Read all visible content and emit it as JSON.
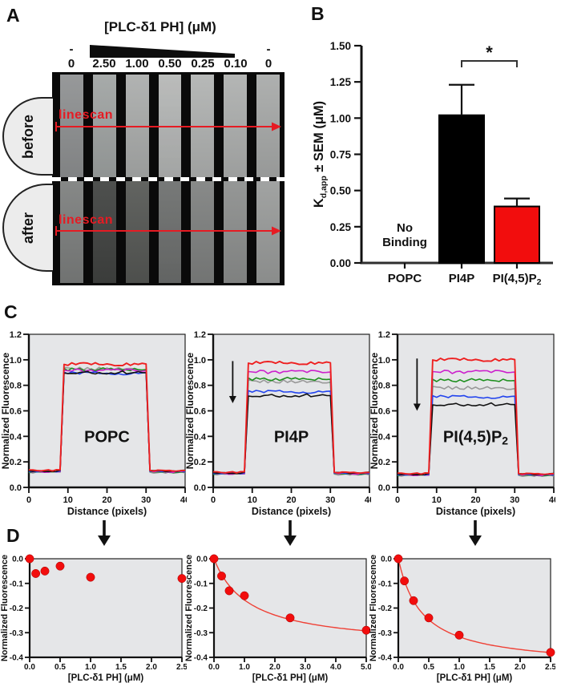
{
  "figure": {
    "panels": {
      "a": "A",
      "b": "B",
      "c": "C",
      "d": "D"
    },
    "panel_a": {
      "title": "[PLC-δ1 PH] (μM)",
      "minus": "-",
      "concentrations": [
        "0",
        "2.50",
        "1.00",
        "0.50",
        "0.25",
        "0.10",
        "0"
      ],
      "rows": [
        {
          "label": "before",
          "linescan": "linescan",
          "lanes": [
            "#8f9192",
            "#a0a4a3",
            "#abadac",
            "#b5b7b6",
            "#b1b3b2",
            "#aeb0af",
            "#a8aaa9"
          ]
        },
        {
          "label": "after",
          "linescan": "linescan",
          "lanes": [
            "#7d7f7e",
            "#414341",
            "#565855",
            "#6d6f6e",
            "#7f8180",
            "#8d8f8e",
            "#9a9c9b"
          ]
        }
      ],
      "accent_red": "#e61b23"
    }
  },
  "chart_data": [
    {
      "id": "kd-bar",
      "type": "bar",
      "ylabel_parts": {
        "pre": "K",
        "sub": "d,app",
        "post": " ± SEM (μM)"
      },
      "categories": [
        "POPC",
        "PI4P",
        "PI(4,5)P₂"
      ],
      "values": [
        null,
        1.02,
        0.39
      ],
      "errors": [
        null,
        0.21,
        0.055
      ],
      "bar_colors": [
        "none",
        "#000000",
        "#f20d0d"
      ],
      "ylim": [
        0,
        1.5
      ],
      "yticks": [
        "0.00",
        "0.25",
        "0.50",
        "0.75",
        "1.00",
        "1.25",
        "1.50"
      ],
      "annotations": {
        "no_binding": "No Binding",
        "sig_star": "*",
        "sig_pair": [
          1,
          2
        ]
      }
    },
    {
      "id": "linescan-popc",
      "type": "line",
      "label": "POPC",
      "xlabel": "Distance (pixels)",
      "ylabel": "Normalized Fluorescence",
      "xlim": [
        0,
        40
      ],
      "ylim": [
        0,
        1.2
      ],
      "xticks": [
        0,
        10,
        20,
        30,
        40
      ],
      "baseline": 0.125,
      "pulse": [
        8,
        31
      ],
      "series": [
        {
          "color": "#999999",
          "plateau": 0.93
        },
        {
          "color": "#1e8f1e",
          "plateau": 0.925
        },
        {
          "color": "#cc22cc",
          "plateau": 0.915
        },
        {
          "color": "#2244ee",
          "plateau": 0.895
        },
        {
          "color": "#111111",
          "plateau": 0.9
        },
        {
          "color": "#ee2020",
          "plateau": 0.965
        }
      ],
      "arrow": null
    },
    {
      "id": "linescan-pi4p",
      "type": "line",
      "label": "PI4P",
      "xlabel": "Distance (pixels)",
      "ylabel": "Normalized Fluorescence",
      "xlim": [
        0,
        40
      ],
      "ylim": [
        0,
        1.2
      ],
      "xticks": [
        0,
        10,
        20,
        30,
        40
      ],
      "baseline": 0.11,
      "pulse": [
        8,
        31
      ],
      "series": [
        {
          "color": "#999999",
          "plateau": 0.83
        },
        {
          "color": "#1e8f1e",
          "plateau": 0.85
        },
        {
          "color": "#cc22cc",
          "plateau": 0.905
        },
        {
          "color": "#2244ee",
          "plateau": 0.75
        },
        {
          "color": "#111111",
          "plateau": 0.72
        },
        {
          "color": "#ee2020",
          "plateau": 0.975
        }
      ],
      "arrow": {
        "x": 5,
        "y1": 0.99,
        "y2": 0.66
      }
    },
    {
      "id": "linescan-pip2",
      "type": "line",
      "label": "PI(4,5)P₂",
      "xlabel": "Distance (pixels)",
      "ylabel": "Normalized Fluorescence",
      "xlim": [
        0,
        40
      ],
      "ylim": [
        0,
        1.2
      ],
      "xticks": [
        0,
        10,
        20,
        30,
        40
      ],
      "baseline": 0.1,
      "pulse": [
        8,
        31
      ],
      "series": [
        {
          "color": "#999999",
          "plateau": 0.78
        },
        {
          "color": "#1e8f1e",
          "plateau": 0.84
        },
        {
          "color": "#cc22cc",
          "plateau": 0.905
        },
        {
          "color": "#2244ee",
          "plateau": 0.71
        },
        {
          "color": "#111111",
          "plateau": 0.65
        },
        {
          "color": "#ee2020",
          "plateau": 1.0
        }
      ],
      "arrow": {
        "x": 5,
        "y1": 1.01,
        "y2": 0.6
      }
    },
    {
      "id": "titration-popc",
      "type": "scatter",
      "xlabel": "[PLC-δ1 PH] (μM)",
      "ylabel": "Normalized Fluorescence",
      "xlim": [
        0,
        2.5
      ],
      "ylim": [
        -0.4,
        0
      ],
      "xticks": [
        "0.0",
        "0.5",
        "1.0",
        "1.5",
        "2.0",
        "2.5"
      ],
      "yticks": [
        "0.0",
        "-0.1",
        "-0.2",
        "-0.3",
        "-0.4"
      ],
      "points": [
        [
          0,
          0
        ],
        [
          0.1,
          -0.06
        ],
        [
          0.25,
          -0.05
        ],
        [
          0.5,
          -0.03
        ],
        [
          1.0,
          -0.075
        ],
        [
          2.5,
          -0.08
        ]
      ],
      "fit": null,
      "point_color": "#f20d0d",
      "curve_color": "#ef4136"
    },
    {
      "id": "titration-pi4p",
      "type": "scatter",
      "xlabel": "[PLC-δ1 PH] (μM)",
      "ylabel": "Normalized Fluorescence",
      "xlim": [
        0,
        5.0
      ],
      "ylim": [
        -0.4,
        0
      ],
      "xticks": [
        "0.0",
        "1.0",
        "2.0",
        "3.0",
        "4.0",
        "5.0"
      ],
      "yticks": [
        "0.0",
        "-0.1",
        "-0.2",
        "-0.3",
        "-0.4"
      ],
      "points": [
        [
          0,
          0
        ],
        [
          0.25,
          -0.07
        ],
        [
          0.5,
          -0.13
        ],
        [
          1.0,
          -0.15
        ],
        [
          2.5,
          -0.24
        ],
        [
          5.0,
          -0.29
        ]
      ],
      "fit": {
        "bmax": -0.36,
        "kd": 1.15
      },
      "point_color": "#f20d0d",
      "curve_color": "#ef4136"
    },
    {
      "id": "titration-pip2",
      "type": "scatter",
      "xlabel": "[PLC-δ1 PH] (μM)",
      "ylabel": "Normalized Fluorescence",
      "xlim": [
        0,
        2.5
      ],
      "ylim": [
        -0.4,
        0
      ],
      "xticks": [
        "0.0",
        "0.5",
        "1.0",
        "1.5",
        "2.0",
        "2.5"
      ],
      "yticks": [
        "0.0",
        "-0.1",
        "-0.2",
        "-0.3",
        "-0.4"
      ],
      "points": [
        [
          0,
          0
        ],
        [
          0.1,
          -0.09
        ],
        [
          0.25,
          -0.17
        ],
        [
          0.5,
          -0.24
        ],
        [
          1.0,
          -0.31
        ],
        [
          2.5,
          -0.38
        ]
      ],
      "fit": {
        "bmax": -0.44,
        "kd": 0.39
      },
      "point_color": "#f20d0d",
      "curve_color": "#ef4136"
    }
  ]
}
